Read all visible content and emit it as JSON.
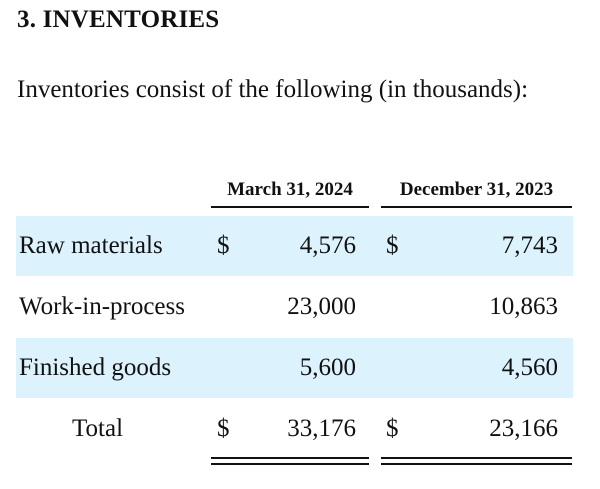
{
  "heading": "3. INVENTORIES",
  "intro": "Inventories consist of the following (in thousands):",
  "table": {
    "columns": [
      "March 31, 2024",
      "December 31, 2023"
    ],
    "rows": [
      {
        "label": "Raw materials",
        "cur1": "$",
        "v1": "4,576",
        "cur2": "$",
        "v2": "7,743"
      },
      {
        "label": "Work-in-process",
        "cur1": "",
        "v1": "23,000",
        "cur2": "",
        "v2": "10,863"
      },
      {
        "label": "Finished goods",
        "cur1": "",
        "v1": "5,600",
        "cur2": "",
        "v2": "4,560"
      },
      {
        "label": "Total",
        "cur1": "$",
        "v1": "33,176",
        "cur2": "$",
        "v2": "23,166"
      }
    ]
  },
  "colors": {
    "row_shade": "#dcf2fd",
    "text": "#111111"
  }
}
